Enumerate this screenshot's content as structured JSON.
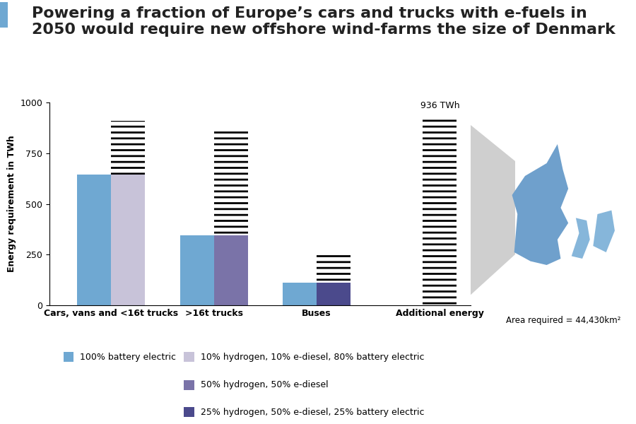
{
  "chart_data": {
    "type": "bar",
    "stacked": true,
    "title": "Powering a fraction of Europe’s cars and trucks with e-fuels in 2050 would require new offshore wind-farms the size of Denmark",
    "y_label": "Energy requirement in TWh",
    "categories": [
      "Cars, vans and <16t trucks",
      ">16t trucks",
      "Buses"
    ],
    "ylim": [
      0,
      1000
    ],
    "yticks": [
      0,
      250,
      500,
      750,
      1000
    ],
    "series": [
      {
        "name": "100% battery electric",
        "color": "#6fa8d2",
        "values": [
          645,
          345,
          110
        ]
      }
    ],
    "scenarios": {
      "names": [
        "10% hydrogen, 10% e-diesel, 80% battery electric",
        "50% hydrogen, 50% e-diesel",
        "25% hydrogen, 50% e-diesel, 25% battery electric"
      ],
      "colors": [
        "#c8c3d9",
        "#7a73a8",
        "#4b4a8c"
      ],
      "values": [
        645,
        345,
        110
      ],
      "additional_values": [
        266,
        525,
        145
      ]
    },
    "additional_energy": {
      "label": "Additional energy",
      "value": 936,
      "value_label": "936 TWh",
      "area_label": "Area required = 44,430km²"
    }
  }
}
